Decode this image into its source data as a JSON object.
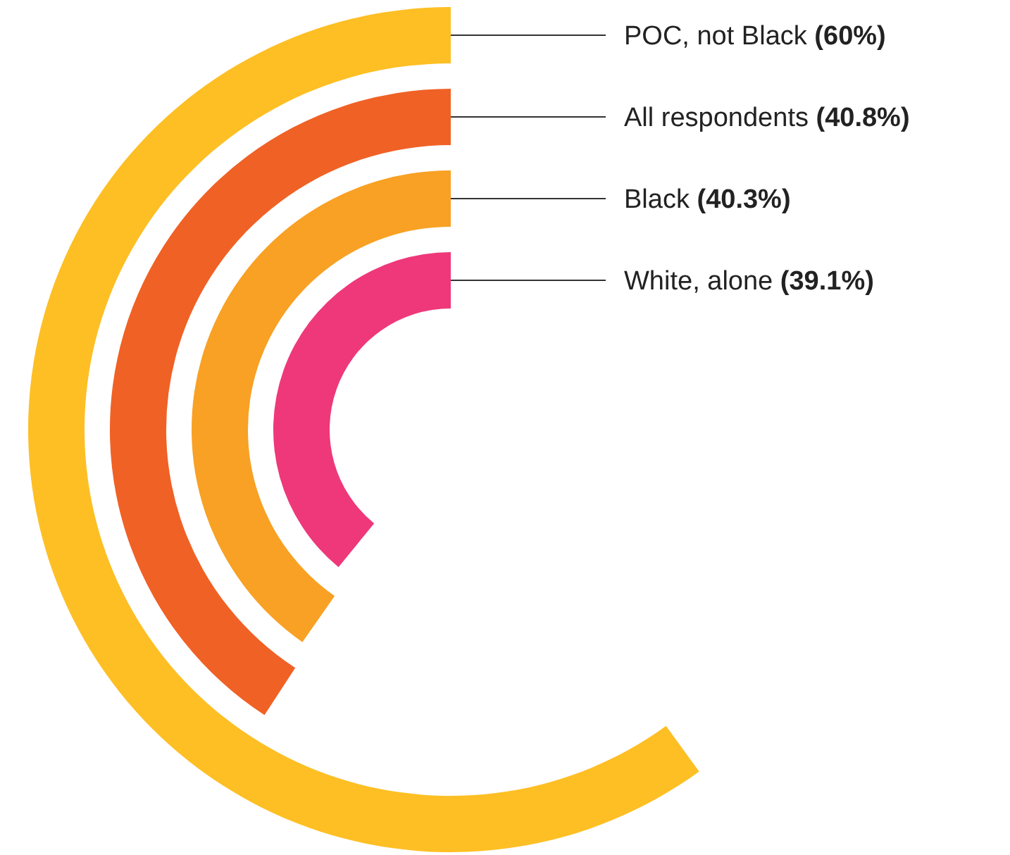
{
  "chart_data": {
    "type": "other",
    "categories": [
      "POC, not Black",
      "All respondents",
      "Black",
      "White, alone"
    ],
    "values": [
      60,
      40.8,
      40.3,
      39.1
    ],
    "colors": [
      "#fdbf24",
      "#f06125",
      "#f8a124",
      "#ee387a"
    ],
    "value_labels": [
      "(60%)",
      "(40.8%)",
      "(40.3%)",
      "(39.1%)"
    ]
  }
}
